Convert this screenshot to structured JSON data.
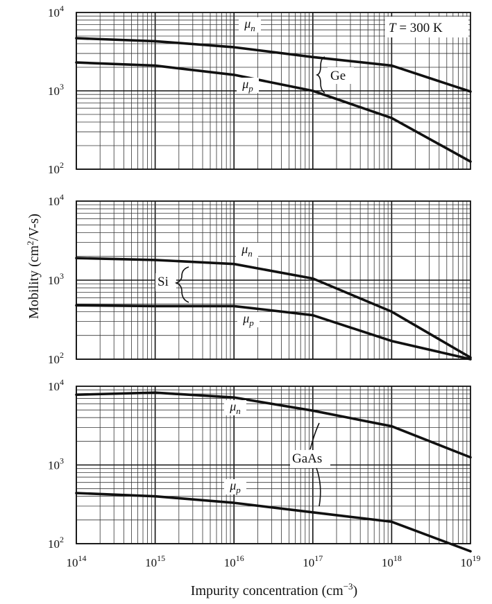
{
  "chart_data": [
    {
      "type": "line",
      "material": "Ge",
      "annotation": "T = 300 K",
      "xscale": "log",
      "yscale": "log",
      "xlim": [
        100000000000000.0,
        1e+19
      ],
      "ylim": [
        100,
        10000
      ],
      "grid": true,
      "series": [
        {
          "name": "μn",
          "x": [
            100000000000000.0,
            1000000000000000.0,
            1e+16,
            1e+17,
            1e+18,
            1e+19
          ],
          "y": [
            4700,
            4300,
            3600,
            2700,
            2100,
            980
          ]
        },
        {
          "name": "μp",
          "x": [
            100000000000000.0,
            1000000000000000.0,
            1e+16,
            1e+17,
            1e+18,
            1e+19
          ],
          "y": [
            2300,
            2100,
            1600,
            1000,
            450,
            125
          ]
        }
      ]
    },
    {
      "type": "line",
      "material": "Si",
      "xscale": "log",
      "yscale": "log",
      "xlim": [
        100000000000000.0,
        1e+19
      ],
      "ylim": [
        100,
        10000
      ],
      "grid": true,
      "series": [
        {
          "name": "μn",
          "x": [
            100000000000000.0,
            1000000000000000.0,
            1e+16,
            1e+17,
            1e+18,
            1e+19
          ],
          "y": [
            1900,
            1800,
            1600,
            1050,
            400,
            105
          ]
        },
        {
          "name": "μp",
          "x": [
            100000000000000.0,
            1000000000000000.0,
            1e+16,
            1e+17,
            1e+18,
            1e+19
          ],
          "y": [
            480,
            470,
            470,
            360,
            170,
            100
          ]
        }
      ]
    },
    {
      "type": "line",
      "material": "GaAs",
      "xscale": "log",
      "yscale": "log",
      "xlim": [
        100000000000000.0,
        1e+19
      ],
      "ylim": [
        100,
        10000
      ],
      "grid": true,
      "series": [
        {
          "name": "μn",
          "x": [
            100000000000000.0,
            1000000000000000.0,
            1e+16,
            1e+17,
            1e+18,
            1e+19
          ],
          "y": [
            7800,
            8300,
            7200,
            4900,
            3100,
            1250
          ]
        },
        {
          "name": "μp",
          "x": [
            100000000000000.0,
            1000000000000000.0,
            1e+16,
            1e+17,
            1e+18,
            1e+19
          ],
          "y": [
            440,
            400,
            330,
            250,
            190,
            80
          ]
        }
      ]
    }
  ],
  "axes": {
    "ylabel_main": "Mobility (cm",
    "ylabel_sup": "2",
    "ylabel_tail": "/V-s)",
    "xlabel_main": "Impurity concentration (cm",
    "xlabel_sup": "−3",
    "xlabel_tail": ")",
    "tick_base": "10",
    "x_exponents": [
      "14",
      "15",
      "16",
      "17",
      "18",
      "19"
    ],
    "y_exponents": [
      "2",
      "3",
      "4"
    ]
  },
  "labels": {
    "mu_symbol": "μ",
    "sub_n": "n",
    "sub_p": "p",
    "temp_T": "T",
    "temp_rest": " = 300 K"
  }
}
